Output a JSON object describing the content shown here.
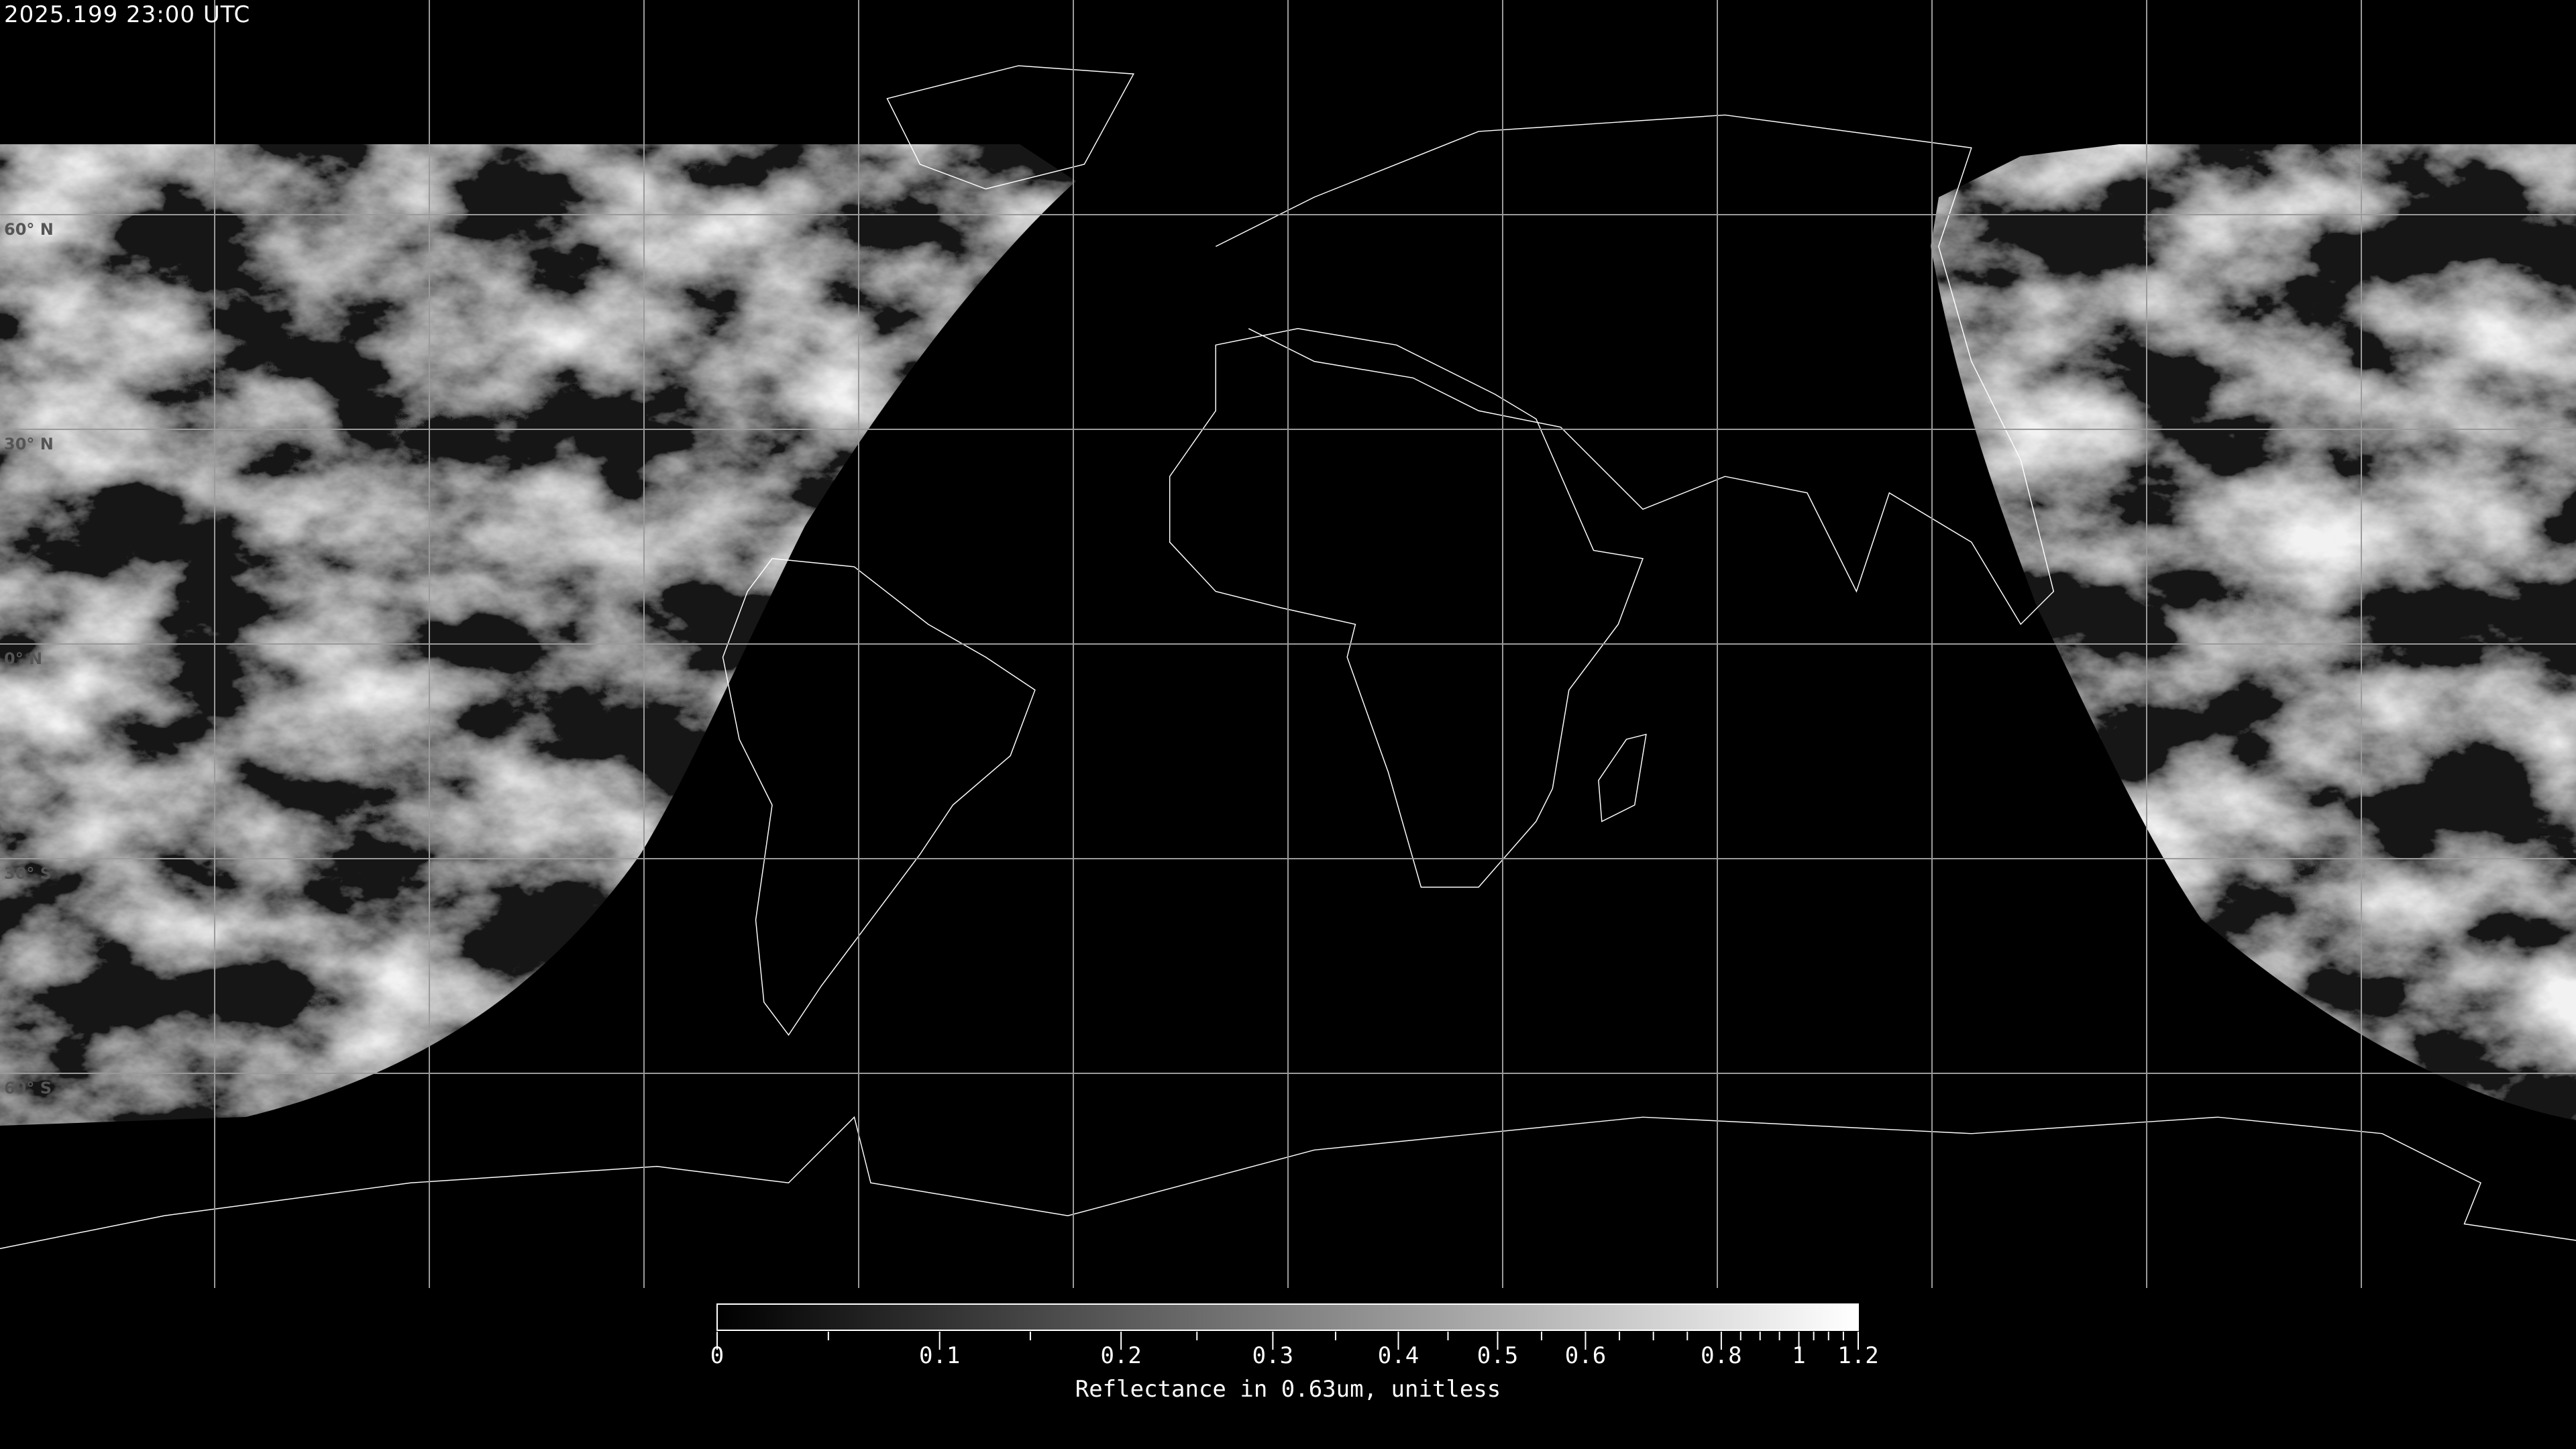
{
  "header": {
    "timestamp": "2025.199 23:00 UTC"
  },
  "map": {
    "projection": "equirectangular",
    "lon_range": [
      -180,
      180
    ],
    "lat_range": [
      -90,
      90
    ],
    "grid_spacing_deg": 30,
    "grid_color": "#9a9a9a",
    "coastline_color": "#ffffff",
    "night_color": "#000000",
    "lat_labels": [
      {
        "lat": 60,
        "text": "60° N"
      },
      {
        "lat": 30,
        "text": "30° N"
      },
      {
        "lat": 0,
        "text": "0° N"
      },
      {
        "lat": -30,
        "text": "30° S"
      },
      {
        "lat": -60,
        "text": "60° S"
      }
    ]
  },
  "colorbar": {
    "title": "Reflectance in 0.63um, unitless",
    "range": [
      0,
      1.2
    ],
    "colormap": "grayscale",
    "ticks": [
      "0",
      "0.1",
      "0.2",
      "0.3",
      "0.4",
      "0.5",
      "0.6",
      "0.8",
      "1",
      "1.2"
    ],
    "minor_ticks": [
      0.05,
      0.15,
      0.25,
      0.35,
      0.45,
      0.55,
      0.65,
      0.7,
      0.75,
      0.85,
      0.9,
      0.95,
      1.05,
      1.1,
      1.15
    ]
  }
}
